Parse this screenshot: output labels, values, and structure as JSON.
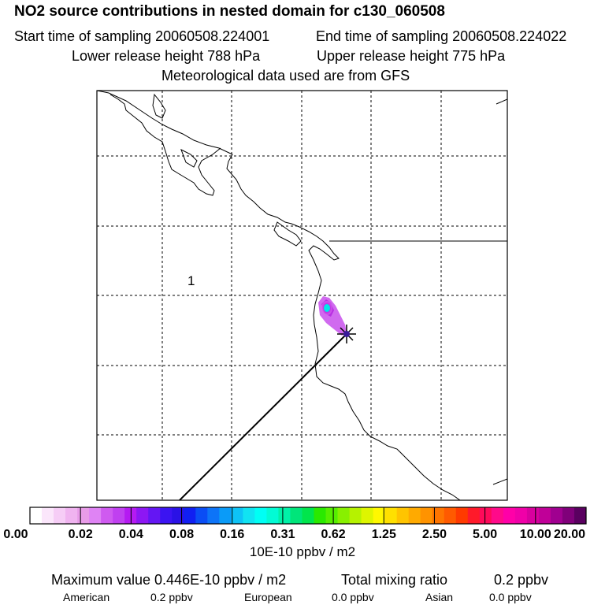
{
  "header": {
    "title": "NO2 source contributions in nested domain for c130_060508",
    "start_label": "Start time of sampling 20060508.224001",
    "end_label": "End time of sampling 20060508.224022",
    "lower_label": "Lower release height  788 hPa",
    "upper_label": "Upper release height  775 hPa",
    "met_label": "Meteorological data used are from GFS"
  },
  "map": {
    "region_label": "1",
    "receptor_marker": "star-marker",
    "plume_colors": [
      "#d14ae6",
      "#b82ee3",
      "#00e8e8",
      "#8a1ee0"
    ]
  },
  "colorbar": {
    "colors": [
      "#ffffff",
      "#fbe6fb",
      "#f6cdf6",
      "#f0b4f0",
      "#e89ce8",
      "#df83f4",
      "#cf5af0",
      "#c040f0",
      "#b51af2",
      "#8d17f3",
      "#6416f3",
      "#3b14f2",
      "#2a12e6",
      "#101ff2",
      "#0a4df5",
      "#0d74f8",
      "#0a9bf8",
      "#0ec3f6",
      "#11e3f2",
      "#00fff5",
      "#02fbd5",
      "#00f2a8",
      "#00e57a",
      "#01e54c",
      "#2ae900",
      "#55ee00",
      "#88f000",
      "#b6f200",
      "#def500",
      "#fff800",
      "#ffe000",
      "#ffc400",
      "#ffaa00",
      "#ff9300",
      "#ff7500",
      "#ff5a00",
      "#ff3a00",
      "#ff1a2a",
      "#ff0a5a",
      "#ff0a8a",
      "#ff00a8",
      "#f000a8",
      "#d8009e",
      "#c00098",
      "#a00090",
      "#80007a",
      "#5a0060"
    ],
    "ticks": [
      "0.00",
      "0.02",
      "0.04",
      "0.08",
      "0.16",
      "0.31",
      "0.62",
      "1.25",
      "2.50",
      "5.00",
      "10.00",
      "20.00"
    ],
    "units": "10E-10 ppbv / m2"
  },
  "footer": {
    "max_label": "Maximum value  0.446E-10 ppbv / m2",
    "total_label": "Total mixing ratio",
    "total_value": "0.2 ppbv",
    "american_label": "American",
    "american_value": "0.2 ppbv",
    "european_label": "European",
    "european_value": "0.0 ppbv",
    "asian_label": "Asian",
    "asian_value": "0.0 ppbv"
  }
}
